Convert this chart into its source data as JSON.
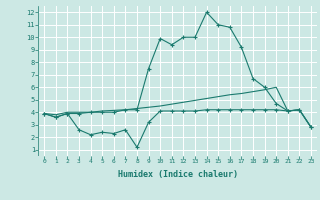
{
  "bg_color": "#cce8e4",
  "line_color": "#1a7a6e",
  "grid_color": "#ffffff",
  "xlabel": "Humidex (Indice chaleur)",
  "xlim": [
    -0.5,
    23.5
  ],
  "ylim": [
    0.5,
    12.5
  ],
  "xticks": [
    0,
    1,
    2,
    3,
    4,
    5,
    6,
    7,
    8,
    9,
    10,
    11,
    12,
    13,
    14,
    15,
    16,
    17,
    18,
    19,
    20,
    21,
    22,
    23
  ],
  "yticks": [
    1,
    2,
    3,
    4,
    5,
    6,
    7,
    8,
    9,
    10,
    11,
    12
  ],
  "line1_x": [
    0,
    1,
    2,
    3,
    4,
    5,
    6,
    7,
    8,
    9,
    10,
    11,
    12,
    13,
    14,
    15,
    16,
    17,
    18,
    19,
    20,
    21,
    22,
    23
  ],
  "line1_y": [
    3.9,
    3.6,
    3.9,
    3.9,
    4.0,
    4.0,
    4.0,
    4.2,
    4.2,
    7.5,
    9.9,
    9.4,
    10.0,
    10.0,
    12.0,
    11.0,
    10.8,
    9.2,
    6.7,
    6.0,
    4.7,
    4.1,
    4.2,
    2.8
  ],
  "line2_x": [
    0,
    1,
    2,
    3,
    4,
    5,
    6,
    7,
    8,
    9,
    10,
    11,
    12,
    13,
    14,
    15,
    16,
    17,
    18,
    19,
    20,
    21,
    22,
    23
  ],
  "line2_y": [
    3.9,
    3.8,
    4.0,
    4.0,
    4.0,
    4.1,
    4.15,
    4.2,
    4.3,
    4.4,
    4.5,
    4.65,
    4.8,
    4.95,
    5.1,
    5.25,
    5.4,
    5.5,
    5.65,
    5.8,
    6.0,
    4.1,
    4.2,
    2.8
  ],
  "line3_x": [
    0,
    1,
    2,
    3,
    4,
    5,
    6,
    7,
    8,
    9,
    10,
    11,
    12,
    13,
    14,
    15,
    16,
    17,
    18,
    19,
    20,
    21,
    22,
    23
  ],
  "line3_y": [
    3.9,
    3.6,
    3.9,
    2.6,
    2.2,
    2.4,
    2.3,
    2.6,
    1.2,
    3.2,
    4.1,
    4.1,
    4.1,
    4.1,
    4.2,
    4.2,
    4.2,
    4.2,
    4.2,
    4.2,
    4.2,
    4.1,
    4.2,
    2.8
  ]
}
